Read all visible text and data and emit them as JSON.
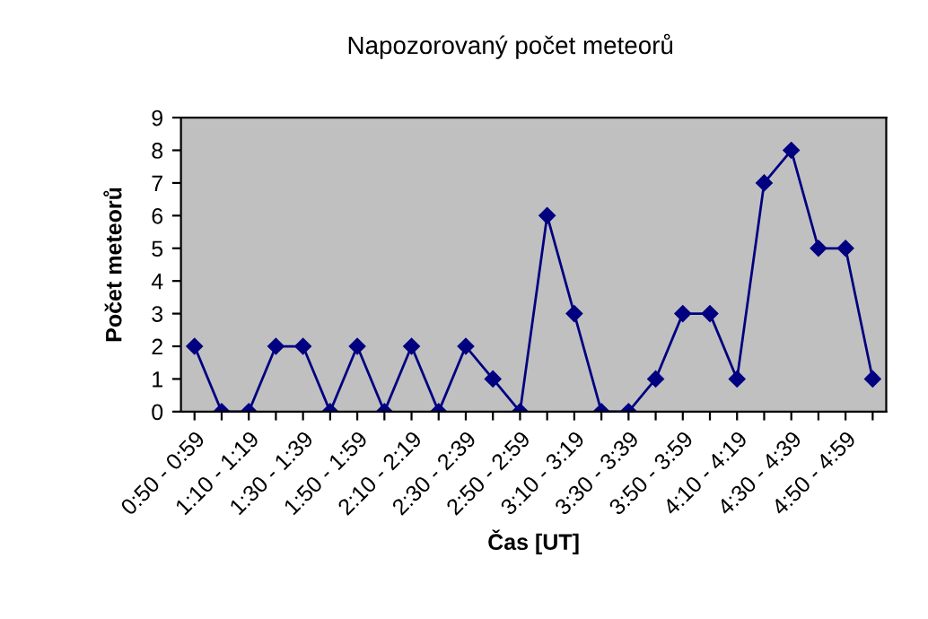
{
  "chart_data": {
    "type": "line",
    "title": "Napozorovaný počet meteorů",
    "xlabel": "Čas [UT]",
    "ylabel": "Počet meteorů",
    "categories": [
      "0:50 - 0:59",
      null,
      "1:10 - 1:19",
      null,
      "1:30 - 1:39",
      null,
      "1:50 - 1:59",
      null,
      "2:10 - 2:19",
      null,
      "2:30 - 2:39",
      null,
      "2:50 - 2:59",
      null,
      "3:10 - 3:19",
      null,
      "3:30 - 3:39",
      null,
      "3:50 - 3:59",
      null,
      "4:10 - 4:19",
      null,
      "4:30 - 4:39",
      null,
      "4:50 - 4:59",
      null
    ],
    "series": [
      {
        "color": "#000080",
        "values": [
          2,
          0,
          0,
          2,
          2,
          0,
          2,
          0,
          2,
          0,
          2,
          1,
          0,
          6,
          3,
          0,
          0,
          1,
          3,
          3,
          1,
          7,
          8,
          5,
          5,
          1
        ]
      }
    ],
    "ylim": [
      0,
      9
    ],
    "yticks": [
      0,
      1,
      2,
      3,
      4,
      5,
      6,
      7,
      8,
      9
    ],
    "grid": false,
    "legend": false,
    "marker": "diamond",
    "line_style": "solid"
  }
}
